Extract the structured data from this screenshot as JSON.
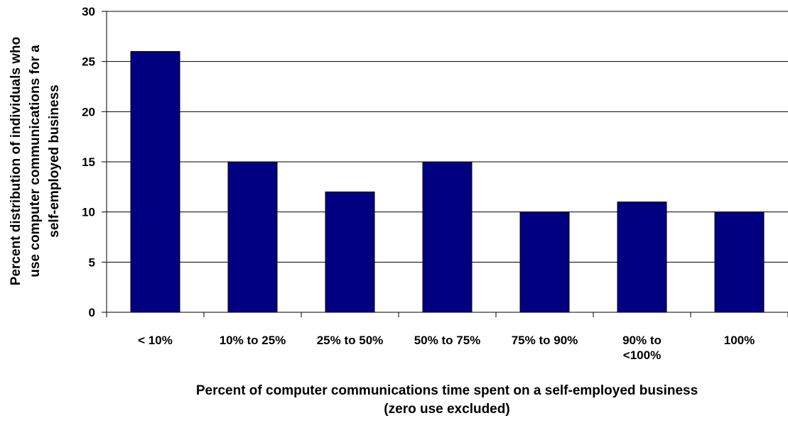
{
  "chart_data": {
    "type": "bar",
    "categories": [
      [
        "< 10%"
      ],
      [
        "10% to 25%"
      ],
      [
        "25% to 50%"
      ],
      [
        "50% to 75%"
      ],
      [
        "75% to 90%"
      ],
      [
        "90% to",
        "<100%"
      ],
      [
        "100%"
      ]
    ],
    "values": [
      26,
      15,
      12,
      15,
      10,
      11,
      10
    ],
    "xlabel": [
      "Percent of computer communications time spent on a self-employed business",
      "(zero use excluded)"
    ],
    "ylabel": [
      "Percent distribution of individuals who",
      "use computer communications for a",
      "self-employed business"
    ],
    "ylim": [
      0,
      30
    ],
    "yticks": [
      0,
      5,
      10,
      15,
      20,
      25,
      30
    ],
    "grid": true,
    "bar_color": "#000080"
  }
}
